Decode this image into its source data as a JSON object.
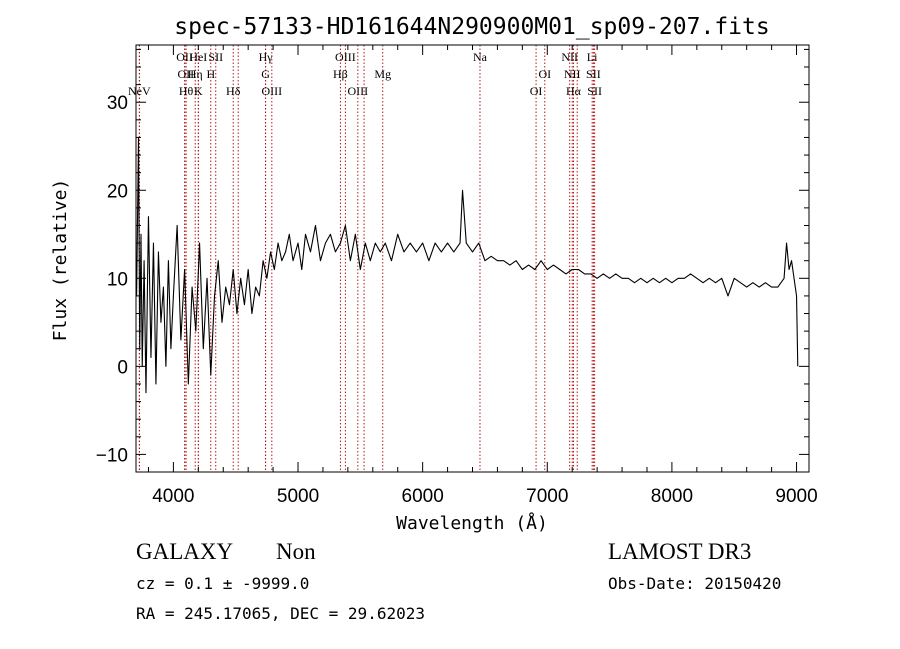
{
  "chart_data": {
    "type": "line",
    "title": "spec-57133-HD161644N290900M01_sp09-207.fits",
    "xlabel": "Wavelength (Å)",
    "ylabel": "Flux (relative)",
    "xlim": [
      3700,
      9100
    ],
    "ylim": [
      -12,
      36.5
    ],
    "xticks": [
      4000,
      5000,
      6000,
      7000,
      8000,
      9000
    ],
    "yticks": [
      -10,
      0,
      10,
      20,
      30
    ],
    "grid": false,
    "series": [
      {
        "color": "#000000",
        "x": [
          3705,
          3720,
          3730,
          3740,
          3750,
          3765,
          3780,
          3800,
          3820,
          3840,
          3860,
          3880,
          3900,
          3920,
          3940,
          3960,
          3980,
          4000,
          4030,
          4060,
          4090,
          4120,
          4150,
          4180,
          4210,
          4240,
          4270,
          4300,
          4330,
          4360,
          4390,
          4420,
          4450,
          4480,
          4510,
          4540,
          4570,
          4600,
          4630,
          4660,
          4690,
          4720,
          4750,
          4780,
          4810,
          4840,
          4870,
          4900,
          4930,
          4960,
          5000,
          5030,
          5060,
          5100,
          5140,
          5180,
          5220,
          5260,
          5300,
          5340,
          5380,
          5420,
          5460,
          5500,
          5540,
          5580,
          5620,
          5660,
          5700,
          5750,
          5800,
          5850,
          5900,
          5950,
          6000,
          6050,
          6100,
          6150,
          6200,
          6250,
          6300,
          6320,
          6350,
          6400,
          6450,
          6500,
          6550,
          6600,
          6650,
          6700,
          6750,
          6800,
          6850,
          6900,
          6950,
          7000,
          7050,
          7100,
          7150,
          7200,
          7250,
          7300,
          7350,
          7400,
          7450,
          7500,
          7550,
          7600,
          7650,
          7700,
          7750,
          7800,
          7850,
          7900,
          7950,
          8000,
          8050,
          8100,
          8150,
          8200,
          8250,
          8300,
          8350,
          8400,
          8450,
          8500,
          8550,
          8600,
          8650,
          8700,
          8750,
          8800,
          8850,
          8900,
          8920,
          8940,
          8960,
          8980,
          9000,
          9010
        ],
        "y": [
          8,
          26,
          2,
          15,
          0,
          12,
          -3,
          17,
          1,
          14,
          -2,
          13,
          5,
          9,
          0,
          12,
          2,
          8,
          16,
          3,
          11,
          -2,
          9,
          4,
          14,
          2,
          10,
          -1,
          8,
          12,
          5,
          9,
          7,
          11,
          6,
          10,
          7,
          11,
          6,
          9,
          8,
          12,
          10,
          13,
          11,
          14,
          12,
          13,
          15,
          12,
          14,
          11,
          15,
          13,
          16,
          12,
          14,
          15,
          13,
          14,
          16,
          12,
          15,
          11,
          14,
          12,
          14,
          13,
          14,
          12,
          15,
          13,
          14,
          13,
          14,
          12,
          14,
          13,
          14,
          13,
          14,
          20,
          14,
          13,
          14,
          12,
          12.5,
          12,
          12,
          11.5,
          12,
          11,
          11.5,
          11,
          12,
          11,
          11.5,
          11,
          10.5,
          11,
          11,
          10.5,
          10.5,
          10,
          10.5,
          10,
          10.5,
          10,
          10,
          9.5,
          10,
          9.5,
          10,
          9.5,
          10,
          9.5,
          10,
          10,
          10.5,
          10,
          9.5,
          10,
          9.5,
          10,
          8,
          10,
          9.5,
          9,
          9.5,
          9,
          9.5,
          9,
          9,
          10,
          14,
          11,
          12,
          10,
          8,
          0
        ]
      }
    ],
    "lines": [
      {
        "wave": 3727,
        "label": "NeV",
        "row": 2
      },
      {
        "wave": 3727,
        "label": "",
        "row": 0
      },
      {
        "wave": 4090,
        "label": "OII",
        "row": 0
      },
      {
        "wave": 4100,
        "label": "OII",
        "row": 1
      },
      {
        "wave": 4102,
        "label": "Hθ",
        "row": 2
      },
      {
        "wave": 4175,
        "label": "Hη",
        "row": 1
      },
      {
        "wave": 4200,
        "label": "HeI",
        "row": 0
      },
      {
        "wave": 4200,
        "label": "K",
        "row": 2
      },
      {
        "wave": 4300,
        "label": "H",
        "row": 1
      },
      {
        "wave": 4340,
        "label": "SII",
        "row": 0
      },
      {
        "wave": 4480,
        "label": "Hδ",
        "row": 2
      },
      {
        "wave": 4520,
        "label": "",
        "row": 0
      },
      {
        "wave": 4740,
        "label": "Hγ",
        "row": 0
      },
      {
        "wave": 4740,
        "label": "G",
        "row": 1
      },
      {
        "wave": 4790,
        "label": "OIII",
        "row": 2
      },
      {
        "wave": 5340,
        "label": "Hβ",
        "row": 1
      },
      {
        "wave": 5380,
        "label": "OIII",
        "row": 0
      },
      {
        "wave": 5480,
        "label": "OIII",
        "row": 2
      },
      {
        "wave": 5530,
        "label": "",
        "row": 0
      },
      {
        "wave": 5680,
        "label": "Mg",
        "row": 1
      },
      {
        "wave": 6460,
        "label": "Na",
        "row": 0
      },
      {
        "wave": 6910,
        "label": "OI",
        "row": 2
      },
      {
        "wave": 6980,
        "label": "OI",
        "row": 1
      },
      {
        "wave": 7180,
        "label": "NII",
        "row": 0
      },
      {
        "wave": 7200,
        "label": "NII",
        "row": 1
      },
      {
        "wave": 7210,
        "label": "Hα",
        "row": 2
      },
      {
        "wave": 7240,
        "label": "",
        "row": 0
      },
      {
        "wave": 7360,
        "label": "Li",
        "row": 0
      },
      {
        "wave": 7370,
        "label": "SII",
        "row": 1
      },
      {
        "wave": 7380,
        "label": "SII",
        "row": 2
      }
    ]
  },
  "info": {
    "class": "GALAXY",
    "subclass": "Non",
    "survey": "LAMOST DR3",
    "cz": "cz = 0.1 ± -9999.0",
    "obs_date": "Obs-Date: 20150420",
    "coords": "RA = 245.17065, DEC =  29.62023"
  }
}
